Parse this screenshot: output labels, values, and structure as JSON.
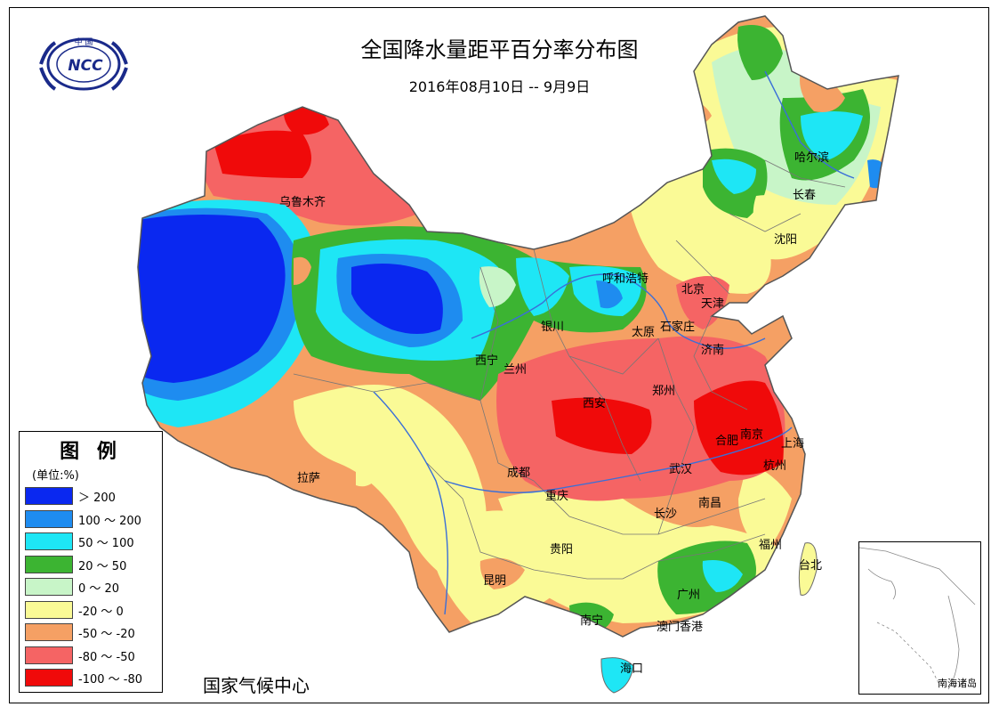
{
  "title": "全国降水量距平百分率分布图",
  "subtitle": "2016年08月10日 -- 9月9日",
  "legend": {
    "title": "图 例",
    "unit": "(单位:%)",
    "items": [
      {
        "label": "＞ 200",
        "color": "#0a28f0"
      },
      {
        "label": "100 ～ 200",
        "color": "#1e8cf0"
      },
      {
        "label": "50 ～ 100",
        "color": "#1ee6f5"
      },
      {
        "label": "20 ～ 50",
        "color": "#3cb432"
      },
      {
        "label": "0 ～ 20",
        "color": "#c8f5c8"
      },
      {
        "label": "-20 ～ 0",
        "color": "#fafa96"
      },
      {
        "label": "-50 ～ -20",
        "color": "#f5a064"
      },
      {
        "label": "-80 ～ -50",
        "color": "#f56464"
      },
      {
        "label": "-100 ～ -80",
        "color": "#f00a0a"
      }
    ]
  },
  "center_name": "国家气候中心",
  "inset_label": "南海诸岛",
  "logo": {
    "top_text": "中 国",
    "acronym": "NCC"
  },
  "cities": [
    {
      "name": "乌鲁木齐"
    },
    {
      "name": "哈尔滨"
    },
    {
      "name": "长春"
    },
    {
      "name": "沈阳"
    },
    {
      "name": "呼和浩特"
    },
    {
      "name": "北京"
    },
    {
      "name": "天津"
    },
    {
      "name": "银川"
    },
    {
      "name": "太原"
    },
    {
      "name": "石家庄"
    },
    {
      "name": "济南"
    },
    {
      "name": "西宁"
    },
    {
      "name": "兰州"
    },
    {
      "name": "郑州"
    },
    {
      "name": "西安"
    },
    {
      "name": "合肥"
    },
    {
      "name": "南京"
    },
    {
      "name": "上海"
    },
    {
      "name": "拉萨"
    },
    {
      "name": "成都"
    },
    {
      "name": "武汉"
    },
    {
      "name": "杭州"
    },
    {
      "name": "重庆"
    },
    {
      "name": "南昌"
    },
    {
      "name": "长沙"
    },
    {
      "name": "贵阳"
    },
    {
      "name": "福州"
    },
    {
      "name": "台北"
    },
    {
      "name": "昆明"
    },
    {
      "name": "广州"
    },
    {
      "name": "南宁"
    },
    {
      "name": "澳门"
    },
    {
      "name": "香港"
    },
    {
      "name": "海口"
    }
  ]
}
